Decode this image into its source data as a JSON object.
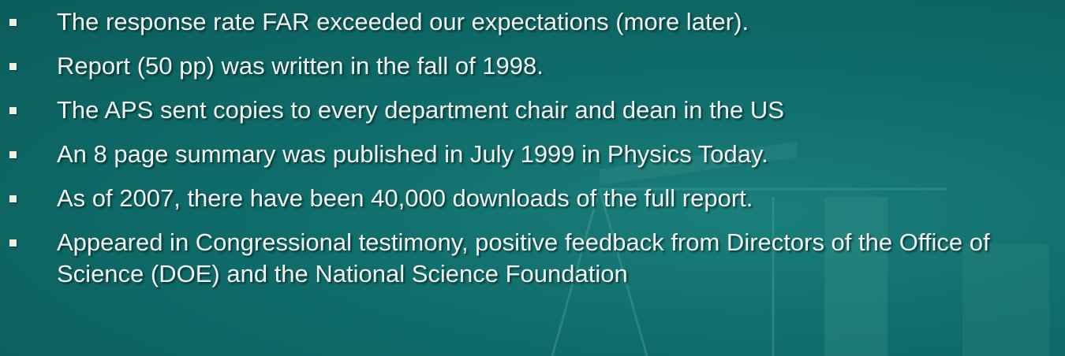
{
  "bullets": [
    "The response rate FAR exceeded our expectations (more later).",
    "Report (50 pp) was written in the fall of 1998.",
    "The APS sent copies to every department chair and dean in the US",
    "An 8 page summary was published in July 1999 in Physics Today.",
    "As of 2007, there have been 40,000 downloads of the full report.",
    "Appeared in Congressional testimony, positive feedback from Directors of the Office of Science (DOE) and the National Science Foundation"
  ]
}
